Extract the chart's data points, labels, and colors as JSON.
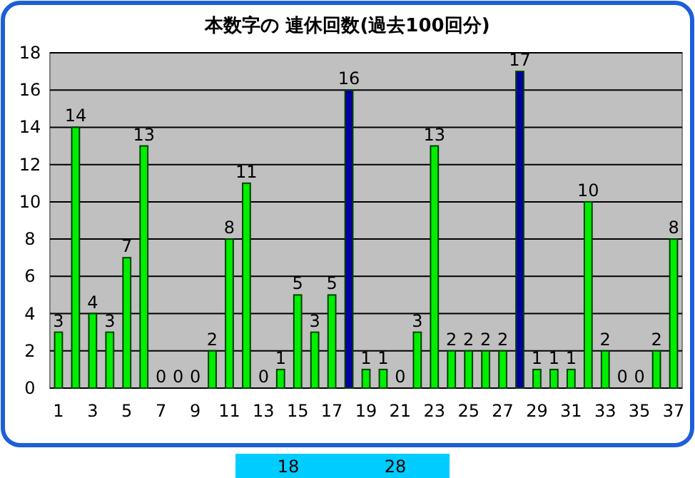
{
  "chart_data": {
    "type": "bar",
    "title": "本数字の 連休回数(過去100回分)",
    "categories": [
      "1",
      null,
      "3",
      null,
      "5",
      null,
      "7",
      null,
      "9",
      null,
      "11",
      null,
      "13",
      null,
      "15",
      null,
      "17",
      null,
      "19",
      null,
      "21",
      null,
      "23",
      null,
      "25",
      null,
      "27",
      null,
      "29",
      null,
      "31",
      null,
      "33",
      null,
      "35",
      null,
      "37"
    ],
    "values": [
      3,
      14,
      4,
      3,
      7,
      13,
      0,
      0,
      0,
      2,
      8,
      11,
      0,
      1,
      5,
      3,
      5,
      16,
      1,
      1,
      0,
      3,
      13,
      2,
      2,
      2,
      2,
      17,
      1,
      1,
      1,
      10,
      2,
      0,
      0,
      2,
      8
    ],
    "colors": [
      "#00ee00",
      "#00ee00",
      "#00ee00",
      "#00ee00",
      "#00ee00",
      "#00ee00",
      "#00ee00",
      "#00ee00",
      "#00ee00",
      "#00ee00",
      "#00ee00",
      "#00ee00",
      "#00ee00",
      "#00ee00",
      "#00ee00",
      "#00ee00",
      "#00ee00",
      "#0000a0",
      "#00ee00",
      "#00ee00",
      "#00ee00",
      "#00ee00",
      "#00ee00",
      "#00ee00",
      "#00ee00",
      "#00ee00",
      "#00ee00",
      "#0000a0",
      "#00ee00",
      "#00ee00",
      "#00ee00",
      "#00ee00",
      "#00ee00",
      "#00ee00",
      "#00ee00",
      "#00ee00",
      "#00ee00"
    ],
    "ylim": [
      0,
      18
    ],
    "yticks": [
      0,
      2,
      4,
      6,
      8,
      10,
      12,
      14,
      16,
      18
    ],
    "grid": "y",
    "data_labels": true,
    "annotations": [
      "18",
      "28"
    ]
  }
}
